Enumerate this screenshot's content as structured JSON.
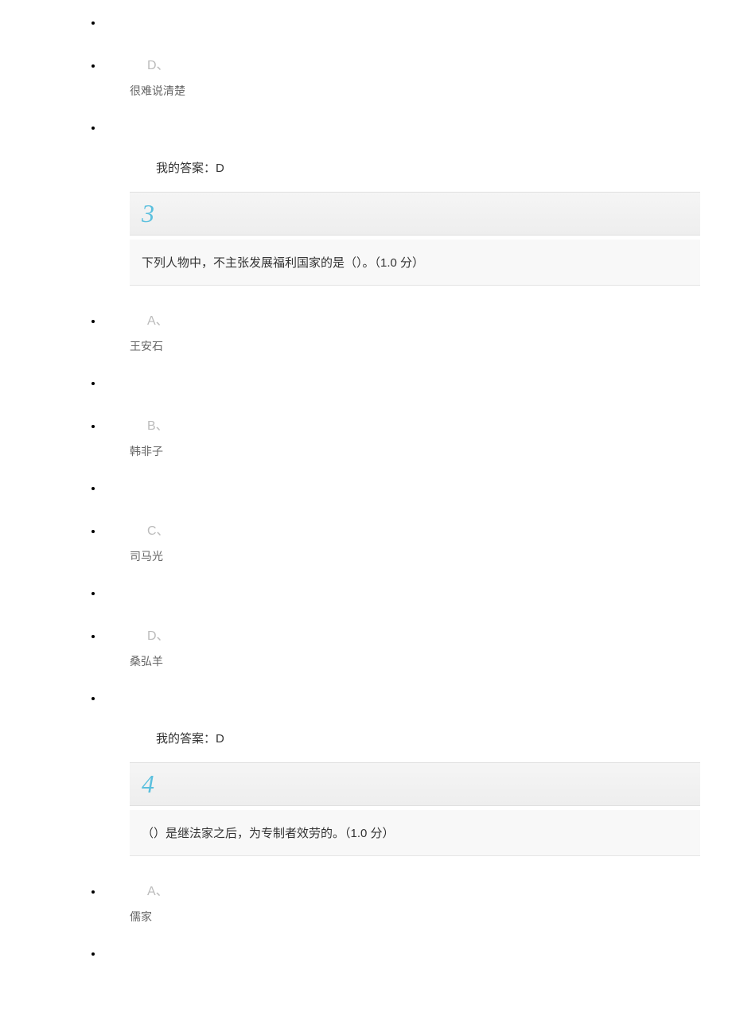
{
  "question2_partial": {
    "options": [
      {
        "letter": "D、",
        "text": "很难说清楚"
      }
    ],
    "answer_label": "我的答案：",
    "answer_value": "D"
  },
  "question3": {
    "number": "3",
    "text": "下列人物中，不主张发展福利国家的是（）。",
    "points": "（1.0 分）",
    "options": [
      {
        "letter": "A、",
        "text": "王安石"
      },
      {
        "letter": "B、",
        "text": "韩非子"
      },
      {
        "letter": "C、",
        "text": "司马光"
      },
      {
        "letter": "D、",
        "text": "桑弘羊"
      }
    ],
    "answer_label": "我的答案：",
    "answer_value": "D"
  },
  "question4": {
    "number": "4",
    "text": "（）是继法家之后，为专制者效劳的。",
    "points": "（1.0 分）",
    "options": [
      {
        "letter": "A、",
        "text": "儒家"
      }
    ]
  }
}
